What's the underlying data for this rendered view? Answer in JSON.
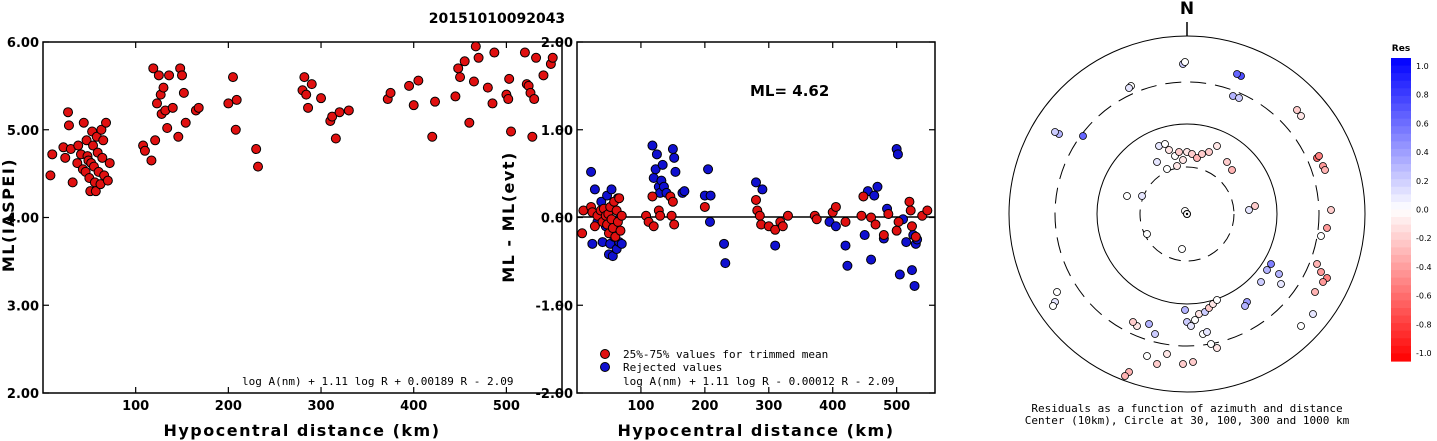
{
  "title": "20151010092043",
  "colors": {
    "red": "#e01010",
    "blue": "#1010d0",
    "black": "#000000"
  },
  "chart_data": [
    {
      "type": "scatter",
      "id": "left",
      "xlabel": "Hypocentral distance (km)",
      "ylabel": "ML(IASPEI)",
      "xlim": [
        0,
        560
      ],
      "ylim": [
        2.0,
        6.0
      ],
      "xticks": [
        100,
        200,
        300,
        400,
        500
      ],
      "xtick_labels": [
        "100",
        "200",
        "300",
        "400",
        "500"
      ],
      "yticks": [
        2,
        3,
        4,
        5,
        6
      ],
      "ytick_labels": [
        "2.00",
        "3.00",
        "4.00",
        "5.00",
        "6.00"
      ],
      "formula": "log A(nm) + 1.11 log R + 0.00189 R - 2.09",
      "points": [
        [
          8,
          4.48
        ],
        [
          10,
          4.72
        ],
        [
          22,
          4.8
        ],
        [
          24,
          4.68
        ],
        [
          27,
          5.2
        ],
        [
          28,
          5.05
        ],
        [
          30,
          4.78
        ],
        [
          32,
          4.4
        ],
        [
          37,
          4.62
        ],
        [
          38,
          4.82
        ],
        [
          41,
          4.72
        ],
        [
          43,
          4.55
        ],
        [
          44,
          5.08
        ],
        [
          46,
          4.52
        ],
        [
          47,
          4.88
        ],
        [
          48,
          4.7
        ],
        [
          49,
          4.65
        ],
        [
          50,
          4.45
        ],
        [
          51,
          4.3
        ],
        [
          52,
          4.62
        ],
        [
          53,
          4.98
        ],
        [
          54,
          4.82
        ],
        [
          55,
          4.58
        ],
        [
          56,
          4.4
        ],
        [
          57,
          4.3
        ],
        [
          58,
          4.92
        ],
        [
          59,
          4.74
        ],
        [
          60,
          4.52
        ],
        [
          62,
          4.38
        ],
        [
          63,
          5.0
        ],
        [
          64,
          4.68
        ],
        [
          65,
          4.88
        ],
        [
          66,
          4.48
        ],
        [
          68,
          5.08
        ],
        [
          70,
          4.42
        ],
        [
          72,
          4.62
        ],
        [
          108,
          4.82
        ],
        [
          110,
          4.76
        ],
        [
          117,
          4.65
        ],
        [
          119,
          5.7
        ],
        [
          121,
          4.88
        ],
        [
          123,
          5.3
        ],
        [
          125,
          5.62
        ],
        [
          127,
          5.4
        ],
        [
          128,
          5.18
        ],
        [
          130,
          5.48
        ],
        [
          132,
          5.22
        ],
        [
          134,
          5.02
        ],
        [
          136,
          5.62
        ],
        [
          140,
          5.25
        ],
        [
          146,
          4.92
        ],
        [
          148,
          5.7
        ],
        [
          150,
          5.62
        ],
        [
          152,
          5.42
        ],
        [
          154,
          5.08
        ],
        [
          165,
          5.22
        ],
        [
          168,
          5.25
        ],
        [
          200,
          5.3
        ],
        [
          205,
          5.6
        ],
        [
          208,
          5.0
        ],
        [
          209,
          5.34
        ],
        [
          230,
          4.78
        ],
        [
          232,
          4.58
        ],
        [
          280,
          5.45
        ],
        [
          282,
          5.6
        ],
        [
          284,
          5.4
        ],
        [
          286,
          5.25
        ],
        [
          290,
          5.52
        ],
        [
          300,
          5.36
        ],
        [
          310,
          5.1
        ],
        [
          312,
          5.15
        ],
        [
          316,
          4.9
        ],
        [
          320,
          5.2
        ],
        [
          330,
          5.22
        ],
        [
          372,
          5.35
        ],
        [
          375,
          5.42
        ],
        [
          395,
          5.5
        ],
        [
          400,
          5.28
        ],
        [
          405,
          5.56
        ],
        [
          420,
          4.92
        ],
        [
          423,
          5.32
        ],
        [
          445,
          5.38
        ],
        [
          448,
          5.7
        ],
        [
          450,
          5.6
        ],
        [
          455,
          5.78
        ],
        [
          460,
          5.08
        ],
        [
          465,
          5.55
        ],
        [
          467,
          5.95
        ],
        [
          470,
          5.82
        ],
        [
          480,
          5.48
        ],
        [
          485,
          5.3
        ],
        [
          487,
          5.88
        ],
        [
          500,
          5.4
        ],
        [
          502,
          5.35
        ],
        [
          503,
          5.58
        ],
        [
          505,
          4.98
        ],
        [
          520,
          5.88
        ],
        [
          522,
          5.52
        ],
        [
          524,
          5.5
        ],
        [
          526,
          5.42
        ],
        [
          528,
          4.92
        ],
        [
          530,
          5.35
        ],
        [
          532,
          5.82
        ],
        [
          540,
          5.62
        ],
        [
          548,
          5.75
        ],
        [
          550,
          5.82
        ]
      ]
    },
    {
      "type": "scatter",
      "id": "middle",
      "xlabel": "Hypocentral distance (km)",
      "ylabel": "ML - ML(evt)",
      "xlim": [
        0,
        560
      ],
      "ylim": [
        -2.0,
        2.0
      ],
      "xticks": [
        100,
        200,
        300,
        400,
        500
      ],
      "xtick_labels": [
        "100",
        "200",
        "300",
        "400",
        "500"
      ],
      "yticks": [
        -2,
        -1,
        0,
        1,
        2
      ],
      "ytick_labels": [
        "-2.00",
        "-1.00",
        "0.00",
        "1.00",
        "2.00"
      ],
      "annotation": "ML= 4.62",
      "formula": "log A(nm) + 1.11 log R - 0.00012 R - 2.09",
      "legend": [
        {
          "label": "25%-75% values for trimmed mean",
          "color": "#e01010"
        },
        {
          "label": "Rejected values",
          "color": "#1010d0"
        }
      ],
      "points_red": [
        [
          8,
          -0.18
        ],
        [
          10,
          0.08
        ],
        [
          22,
          0.12
        ],
        [
          24,
          0.06
        ],
        [
          28,
          -0.1
        ],
        [
          32,
          0.02
        ],
        [
          37,
          0.08
        ],
        [
          40,
          -0.05
        ],
        [
          42,
          0.1
        ],
        [
          45,
          0.02
        ],
        [
          47,
          -0.08
        ],
        [
          49,
          0.04
        ],
        [
          50,
          -0.18
        ],
        [
          52,
          0.12
        ],
        [
          54,
          -0.02
        ],
        [
          56,
          -0.12
        ],
        [
          58,
          0.18
        ],
        [
          60,
          -0.22
        ],
        [
          62,
          0.08
        ],
        [
          64,
          -0.05
        ],
        [
          66,
          0.22
        ],
        [
          68,
          -0.15
        ],
        [
          70,
          0.02
        ],
        [
          108,
          0.02
        ],
        [
          112,
          -0.05
        ],
        [
          118,
          0.24
        ],
        [
          120,
          -0.1
        ],
        [
          128,
          0.08
        ],
        [
          130,
          0.02
        ],
        [
          146,
          0.24
        ],
        [
          148,
          0.02
        ],
        [
          150,
          0.18
        ],
        [
          152,
          -0.08
        ],
        [
          200,
          0.12
        ],
        [
          280,
          0.2
        ],
        [
          282,
          0.08
        ],
        [
          286,
          0.02
        ],
        [
          288,
          -0.08
        ],
        [
          300,
          -0.1
        ],
        [
          310,
          -0.14
        ],
        [
          318,
          -0.05
        ],
        [
          322,
          -0.1
        ],
        [
          330,
          0.02
        ],
        [
          372,
          0.02
        ],
        [
          375,
          -0.02
        ],
        [
          400,
          0.06
        ],
        [
          405,
          0.12
        ],
        [
          420,
          -0.05
        ],
        [
          445,
          0.02
        ],
        [
          448,
          0.24
        ],
        [
          460,
          0.0
        ],
        [
          467,
          -0.08
        ],
        [
          480,
          -0.2
        ],
        [
          487,
          0.04
        ],
        [
          500,
          -0.15
        ],
        [
          503,
          -0.05
        ],
        [
          520,
          0.18
        ],
        [
          522,
          0.08
        ],
        [
          524,
          -0.1
        ],
        [
          530,
          -0.22
        ],
        [
          540,
          0.02
        ],
        [
          548,
          0.08
        ]
      ],
      "points_blue": [
        [
          22,
          0.52
        ],
        [
          24,
          -0.3
        ],
        [
          28,
          0.32
        ],
        [
          32,
          -0.05
        ],
        [
          38,
          0.18
        ],
        [
          40,
          -0.28
        ],
        [
          42,
          0.08
        ],
        [
          45,
          -0.1
        ],
        [
          47,
          0.25
        ],
        [
          50,
          -0.42
        ],
        [
          52,
          -0.3
        ],
        [
          54,
          0.32
        ],
        [
          56,
          -0.44
        ],
        [
          58,
          -0.22
        ],
        [
          60,
          -0.18
        ],
        [
          62,
          -0.36
        ],
        [
          64,
          0.22
        ],
        [
          66,
          -0.28
        ],
        [
          68,
          0.02
        ],
        [
          70,
          -0.3
        ],
        [
          118,
          0.82
        ],
        [
          120,
          0.45
        ],
        [
          123,
          0.55
        ],
        [
          125,
          0.72
        ],
        [
          128,
          0.35
        ],
        [
          130,
          0.28
        ],
        [
          132,
          0.42
        ],
        [
          134,
          0.6
        ],
        [
          136,
          0.35
        ],
        [
          140,
          0.28
        ],
        [
          150,
          0.78
        ],
        [
          152,
          0.68
        ],
        [
          154,
          0.52
        ],
        [
          165,
          0.28
        ],
        [
          168,
          0.3
        ],
        [
          200,
          0.25
        ],
        [
          205,
          0.55
        ],
        [
          208,
          -0.05
        ],
        [
          209,
          0.25
        ],
        [
          230,
          -0.3
        ],
        [
          232,
          -0.52
        ],
        [
          280,
          0.4
        ],
        [
          290,
          0.32
        ],
        [
          310,
          -0.32
        ],
        [
          395,
          -0.05
        ],
        [
          405,
          -0.1
        ],
        [
          420,
          -0.32
        ],
        [
          423,
          -0.55
        ],
        [
          450,
          -0.2
        ],
        [
          455,
          0.3
        ],
        [
          460,
          -0.48
        ],
        [
          465,
          0.25
        ],
        [
          470,
          0.35
        ],
        [
          480,
          -0.24
        ],
        [
          485,
          0.1
        ],
        [
          500,
          0.78
        ],
        [
          502,
          0.72
        ],
        [
          505,
          -0.65
        ],
        [
          510,
          -0.02
        ],
        [
          515,
          -0.28
        ],
        [
          524,
          -0.6
        ],
        [
          526,
          -0.2
        ],
        [
          528,
          -0.78
        ],
        [
          530,
          -0.3
        ],
        [
          532,
          -0.25
        ]
      ]
    },
    {
      "type": "scatter",
      "id": "polar",
      "north_label": "N",
      "caption_line1": "Residuals as a function of azimuth and distance",
      "caption_line2": "Center (10km), Circle at 30, 100, 300 and 1000 km",
      "colorbar_label": "Res",
      "colorbar_ticks": [
        "1.0",
        "0.8",
        "0.6",
        "0.4",
        "0.2",
        "0.0",
        "-0.2",
        "-0.4",
        "-0.6",
        "-0.8",
        "-1.0"
      ],
      "stations": [
        [
          -2,
          -3,
          0.0
        ],
        [
          -45,
          -18,
          0.1
        ],
        [
          -5,
          35,
          0.0
        ],
        [
          -40,
          20,
          0.0
        ],
        [
          -28,
          -68,
          0.1
        ],
        [
          -22,
          -70,
          0.0
        ],
        [
          -18,
          -64,
          -0.1
        ],
        [
          -12,
          -58,
          0.0
        ],
        [
          -8,
          -62,
          -0.2
        ],
        [
          -4,
          -54,
          -0.1
        ],
        [
          0,
          -62,
          -0.1
        ],
        [
          5,
          -60,
          -0.2
        ],
        [
          10,
          -56,
          -0.3
        ],
        [
          15,
          -60,
          -0.2
        ],
        [
          22,
          -62,
          -0.2
        ],
        [
          30,
          -68,
          -0.1
        ],
        [
          40,
          -52,
          -0.2
        ],
        [
          45,
          -44,
          -0.3
        ],
        [
          -20,
          -45,
          0.0
        ],
        [
          -10,
          -48,
          -0.1
        ],
        [
          -30,
          -52,
          0.1
        ],
        [
          68,
          -8,
          -0.2
        ],
        [
          62,
          -4,
          0.1
        ],
        [
          -60,
          -18,
          0.0
        ],
        [
          -4,
          -150,
          0.2
        ],
        [
          -2,
          -152,
          0.0
        ],
        [
          54,
          -138,
          0.7
        ],
        [
          50,
          -140,
          0.6
        ],
        [
          46,
          -118,
          0.3
        ],
        [
          52,
          -116,
          0.2
        ],
        [
          -104,
          -78,
          0.6
        ],
        [
          -128,
          -80,
          0.3
        ],
        [
          -132,
          -82,
          0.2
        ],
        [
          -56,
          -128,
          0.0
        ],
        [
          -58,
          -126,
          0.1
        ],
        [
          110,
          -104,
          -0.2
        ],
        [
          114,
          -98,
          -0.1
        ],
        [
          130,
          -56,
          -0.6
        ],
        [
          132,
          -58,
          -0.5
        ],
        [
          136,
          -48,
          -0.4
        ],
        [
          138,
          -44,
          -0.3
        ],
        [
          144,
          -4,
          -0.2
        ],
        [
          140,
          14,
          -0.4
        ],
        [
          134,
          22,
          0.0
        ],
        [
          130,
          50,
          -0.3
        ],
        [
          134,
          58,
          -0.4
        ],
        [
          140,
          64,
          -0.5
        ],
        [
          136,
          68,
          -0.4
        ],
        [
          128,
          78,
          -0.3
        ],
        [
          126,
          100,
          0.1
        ],
        [
          114,
          112,
          0.0
        ],
        [
          84,
          50,
          0.5
        ],
        [
          80,
          56,
          0.3
        ],
        [
          74,
          68,
          0.2
        ],
        [
          92,
          60,
          0.3
        ],
        [
          94,
          70,
          0.1
        ],
        [
          60,
          88,
          0.4
        ],
        [
          58,
          92,
          0.3
        ],
        [
          -2,
          96,
          0.3
        ],
        [
          0,
          108,
          0.2
        ],
        [
          4,
          112,
          0.1
        ],
        [
          8,
          106,
          0.0
        ],
        [
          12,
          100,
          -0.1
        ],
        [
          18,
          98,
          0.2
        ],
        [
          22,
          94,
          -0.2
        ],
        [
          26,
          90,
          -0.1
        ],
        [
          30,
          86,
          0.0
        ],
        [
          16,
          120,
          0.0
        ],
        [
          20,
          118,
          0.1
        ],
        [
          24,
          130,
          0.0
        ],
        [
          30,
          134,
          -0.1
        ],
        [
          -32,
          120,
          0.2
        ],
        [
          -38,
          110,
          0.3
        ],
        [
          -20,
          140,
          -0.1
        ],
        [
          -4,
          150,
          -0.2
        ],
        [
          6,
          148,
          -0.2
        ],
        [
          -50,
          112,
          -0.1
        ],
        [
          -54,
          108,
          -0.2
        ],
        [
          -58,
          158,
          -0.3
        ],
        [
          -62,
          162,
          -0.3
        ],
        [
          -130,
          78,
          0.0
        ],
        [
          -132,
          88,
          0.1
        ],
        [
          -134,
          92,
          0.0
        ],
        [
          -30,
          150,
          -0.2
        ],
        [
          -40,
          142,
          0.0
        ]
      ]
    }
  ]
}
